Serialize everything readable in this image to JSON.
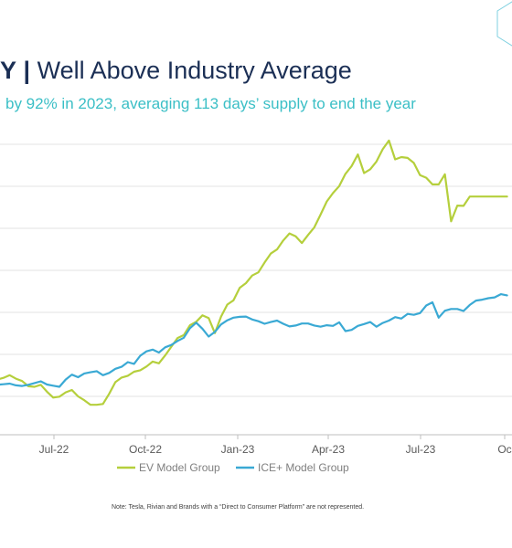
{
  "header": {
    "title_prefix": "Y",
    "title_separator": "|",
    "title_main": "Well Above Industry Average",
    "subtitle": "by 92% in 2023, averaging 113 days’ supply to end the year"
  },
  "note": "Note: Tesla, Rivian and Brands with a “Direct to Consumer Platform” are not represented.",
  "colors": {
    "title": "#1b2f55",
    "subtitle": "#3bbfc6",
    "ev_series": "#b5cf3c",
    "ice_series": "#3aa9d4",
    "grid": "#e3e3e3",
    "logo": "#7fd0e0"
  },
  "icons": {
    "logo": "hexagon-logo-icon"
  },
  "chart_data": {
    "type": "line",
    "title": "Y | Well Above Industry Average",
    "xlabel": "",
    "ylabel": "",
    "tick_labels": [
      "Jul-22",
      "Oct-22",
      "Jan-23",
      "Apr-23",
      "Jul-23",
      "Oc"
    ],
    "x_index_range": [
      0,
      82
    ],
    "y_index_range": [
      0,
      100
    ],
    "grid": "horizontal",
    "legend": "bottom-center",
    "x": [
      0,
      1,
      2,
      3,
      4,
      5,
      6,
      7,
      8,
      9,
      10,
      11,
      12,
      13,
      14,
      15,
      16,
      17,
      18,
      19,
      20,
      21,
      22,
      23,
      24,
      25,
      26,
      27,
      28,
      29,
      30,
      31,
      32,
      33,
      34,
      35,
      36,
      37,
      38,
      39,
      40,
      41,
      42,
      43,
      44,
      45,
      46,
      47,
      48,
      49,
      50,
      51,
      52,
      53,
      54,
      55,
      56,
      57,
      58,
      59,
      60,
      61,
      62,
      63,
      64,
      65,
      66,
      67,
      68,
      69,
      70,
      71,
      72,
      73,
      74,
      75,
      76,
      77,
      78,
      79,
      80,
      81,
      82
    ],
    "series": [
      {
        "name": "EV Model Group",
        "color": "#b5cf3c",
        "values": [
          19,
          19.6,
          20.5,
          19.3,
          18.5,
          16.7,
          16.5,
          17.2,
          14.8,
          12.8,
          13.1,
          14.6,
          15.4,
          13.2,
          11.9,
          10.3,
          10.3,
          10.6,
          14.1,
          18.1,
          19.7,
          20.3,
          21.7,
          22.2,
          23.5,
          25.2,
          24.6,
          27.3,
          30.3,
          33.3,
          34.3,
          37.7,
          38.9,
          41.1,
          40.2,
          35,
          40.7,
          44.8,
          46.3,
          50.6,
          52.2,
          54.8,
          55.9,
          59.3,
          62.4,
          63.8,
          66.9,
          69.3,
          68.3,
          66,
          68.8,
          71.4,
          75.8,
          80.3,
          83.2,
          85.6,
          89.8,
          92.5,
          96.5,
          90.1,
          91.4,
          94.1,
          98.3,
          101.3,
          94.8,
          95.6,
          95.3,
          93.6,
          89.4,
          88.5,
          86.2,
          86.2,
          89.7,
          73.5,
          78.9,
          78.8,
          82,
          82,
          82,
          82,
          82,
          82,
          82
        ]
      },
      {
        "name": "ICE+ Model Group",
        "color": "#3aa9d4",
        "values": [
          17.2,
          17.4,
          17.6,
          17,
          16.8,
          17.2,
          17.8,
          18.4,
          17.3,
          16.9,
          16.5,
          19,
          20.7,
          19.8,
          21.1,
          21.5,
          21.9,
          20.5,
          21.3,
          22.7,
          23.4,
          25,
          24.4,
          27.2,
          28.7,
          29.3,
          28.3,
          30.1,
          30.9,
          32.3,
          33.4,
          36.7,
          38.6,
          36.5,
          33.8,
          35.4,
          38,
          39.4,
          40.3,
          40.6,
          40.7,
          39.7,
          39.1,
          38.2,
          38.8,
          39.3,
          38.2,
          37.3,
          37.6,
          38.3,
          38.3,
          37.6,
          37.2,
          37.7,
          37.5,
          38.7,
          35.7,
          36.1,
          37.5,
          38.1,
          38.8,
          37.2,
          38.5,
          39.3,
          40.5,
          40,
          41.6,
          41.3,
          41.9,
          44.5,
          45.6,
          40.3,
          42.7,
          43.3,
          43.3,
          42.6,
          44.7,
          46.2,
          46.5,
          47,
          47.3,
          48.4,
          48
        ]
      }
    ]
  }
}
